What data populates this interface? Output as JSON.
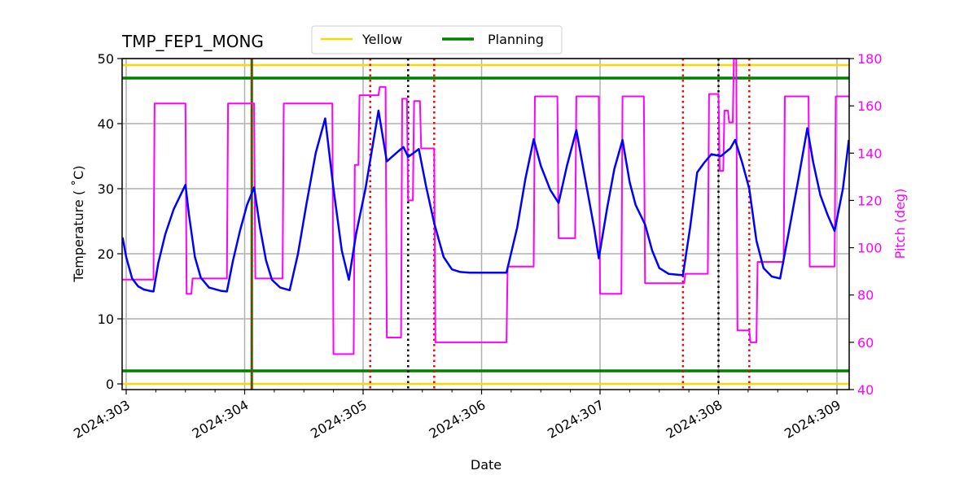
{
  "chart_data": {
    "type": "line",
    "title": "TMP_FEP1_MONG",
    "xlabel": "Date",
    "ylabel": "Temperature ($^\\circ$C)",
    "ylabel_display": "Temperature ( ˚C)",
    "y2label": "Pitch (deg)",
    "xlim": [
      302.97,
      309.1
    ],
    "ylim": [
      -1,
      50
    ],
    "y2lim": [
      40,
      180
    ],
    "x_ticks": [
      303,
      304,
      305,
      306,
      307,
      308,
      309
    ],
    "x_tick_labels": [
      "2024:303",
      "2024:304",
      "2024:305",
      "2024:306",
      "2024:307",
      "2024:308",
      "2024:309"
    ],
    "y_ticks": [
      0,
      10,
      20,
      30,
      40,
      50
    ],
    "y2_ticks": [
      40,
      60,
      80,
      100,
      120,
      140,
      160,
      180
    ],
    "grid": true,
    "legend": {
      "position": "top-center",
      "entries": [
        {
          "label": "Yellow",
          "color": "#ffd700"
        },
        {
          "label": "Planning",
          "color": "#008000"
        }
      ]
    },
    "limits": {
      "yellow": [
        0,
        49
      ],
      "planning": [
        2,
        47
      ]
    },
    "vertical_lines": [
      {
        "x": 304.06,
        "color": "#008000",
        "style": "solid"
      },
      {
        "x": 304.06,
        "color": "#ff0000",
        "style": "dotted"
      },
      {
        "x": 305.06,
        "color": "#ff0000",
        "style": "dotted"
      },
      {
        "x": 305.38,
        "color": "#000000",
        "style": "dotted"
      },
      {
        "x": 305.6,
        "color": "#ff0000",
        "style": "dotted"
      },
      {
        "x": 307.7,
        "color": "#ff0000",
        "style": "dotted"
      },
      {
        "x": 308.0,
        "color": "#000000",
        "style": "dotted"
      },
      {
        "x": 308.26,
        "color": "#ff0000",
        "style": "dotted"
      }
    ],
    "series": [
      {
        "name": "Temperature",
        "axis": "left",
        "color": "#0000ff",
        "x": [
          302.97,
          303.0,
          303.05,
          303.1,
          303.15,
          303.2,
          303.23,
          303.27,
          303.33,
          303.4,
          303.5,
          303.53,
          303.58,
          303.63,
          303.7,
          303.8,
          303.85,
          303.9,
          303.96,
          304.02,
          304.08,
          304.13,
          304.18,
          304.23,
          304.3,
          304.38,
          304.45,
          304.52,
          304.6,
          304.68,
          304.75,
          304.82,
          304.88,
          304.94,
          305.02,
          305.13,
          305.2,
          305.3,
          305.34,
          305.38,
          305.42,
          305.47,
          305.53,
          305.6,
          305.68,
          305.75,
          305.82,
          305.9,
          306.0,
          306.21,
          306.3,
          306.37,
          306.44,
          306.5,
          306.58,
          306.65,
          306.72,
          306.8,
          306.88,
          306.95,
          306.99,
          307.06,
          307.12,
          307.19,
          307.25,
          307.3,
          307.38,
          307.44,
          307.5,
          307.58,
          307.7,
          307.76,
          307.82,
          307.88,
          307.94,
          308.02,
          308.1,
          308.14,
          308.2,
          308.26,
          308.32,
          308.38,
          308.45,
          308.52,
          308.6,
          308.68,
          308.75,
          308.8,
          308.86,
          308.92,
          308.98,
          309.05,
          309.1
        ],
        "y": [
          22.5,
          19.5,
          16.2,
          15.0,
          14.5,
          14.3,
          14.2,
          18.5,
          23.0,
          26.8,
          30.6,
          26.0,
          19.5,
          16.3,
          14.8,
          14.3,
          14.2,
          18.8,
          23.5,
          27.5,
          30.2,
          24.0,
          19.0,
          16.0,
          14.8,
          14.4,
          20.0,
          27.5,
          35.5,
          40.8,
          30.0,
          20.5,
          16.0,
          23.0,
          30.0,
          42.0,
          34.2,
          35.8,
          36.4,
          34.9,
          35.4,
          36.1,
          30.5,
          24.7,
          19.5,
          17.6,
          17.2,
          17.1,
          17.1,
          17.1,
          24.0,
          31.5,
          37.6,
          33.5,
          29.8,
          27.8,
          33.5,
          39.0,
          31.0,
          24.0,
          19.3,
          27.0,
          33.0,
          37.5,
          31.0,
          27.5,
          24.5,
          20.5,
          17.8,
          16.9,
          16.7,
          24.0,
          32.5,
          34.0,
          35.3,
          35.0,
          36.2,
          37.5,
          34.0,
          30.0,
          22.0,
          17.8,
          16.5,
          16.2,
          24.0,
          32.0,
          39.3,
          34.0,
          29.0,
          26.0,
          23.5,
          30.0,
          37.5
        ]
      },
      {
        "name": "Pitch",
        "axis": "right",
        "color": "#ff00ff",
        "x": [
          302.97,
          303.23,
          303.24,
          303.5,
          303.51,
          303.55,
          303.56,
          303.85,
          303.86,
          304.08,
          304.09,
          304.32,
          304.33,
          304.74,
          304.75,
          304.92,
          304.93,
          304.96,
          304.97,
          305.13,
          305.14,
          305.19,
          305.2,
          305.32,
          305.33,
          305.37,
          305.38,
          305.42,
          305.43,
          305.48,
          305.49,
          305.6,
          305.61,
          306.21,
          306.22,
          306.44,
          306.45,
          306.64,
          306.65,
          306.79,
          306.8,
          306.99,
          307.0,
          307.18,
          307.19,
          307.37,
          307.38,
          307.71,
          307.72,
          307.91,
          307.92,
          308.0,
          308.01,
          308.04,
          308.05,
          308.08,
          308.09,
          308.12,
          308.13,
          308.15,
          308.16,
          308.26,
          308.27,
          308.32,
          308.33,
          308.55,
          308.56,
          308.76,
          308.77,
          308.98,
          308.99,
          309.1
        ],
        "y": [
          86.5,
          86.5,
          161,
          161,
          80.5,
          80.5,
          87,
          87,
          161,
          161,
          87,
          87,
          161,
          161,
          55,
          55,
          135,
          135,
          164.5,
          164.5,
          168,
          168,
          62,
          62,
          163,
          163,
          120,
          120,
          162,
          162,
          142,
          142,
          60,
          60,
          92,
          92,
          164,
          164,
          104,
          104,
          164,
          164,
          80.5,
          80.5,
          164,
          164,
          85,
          85,
          89,
          89,
          165,
          165,
          132.5,
          132.5,
          158,
          158,
          153,
          153,
          180,
          180,
          65,
          65,
          60,
          60,
          94,
          94,
          164,
          164,
          92,
          92,
          164,
          164
        ]
      }
    ]
  }
}
